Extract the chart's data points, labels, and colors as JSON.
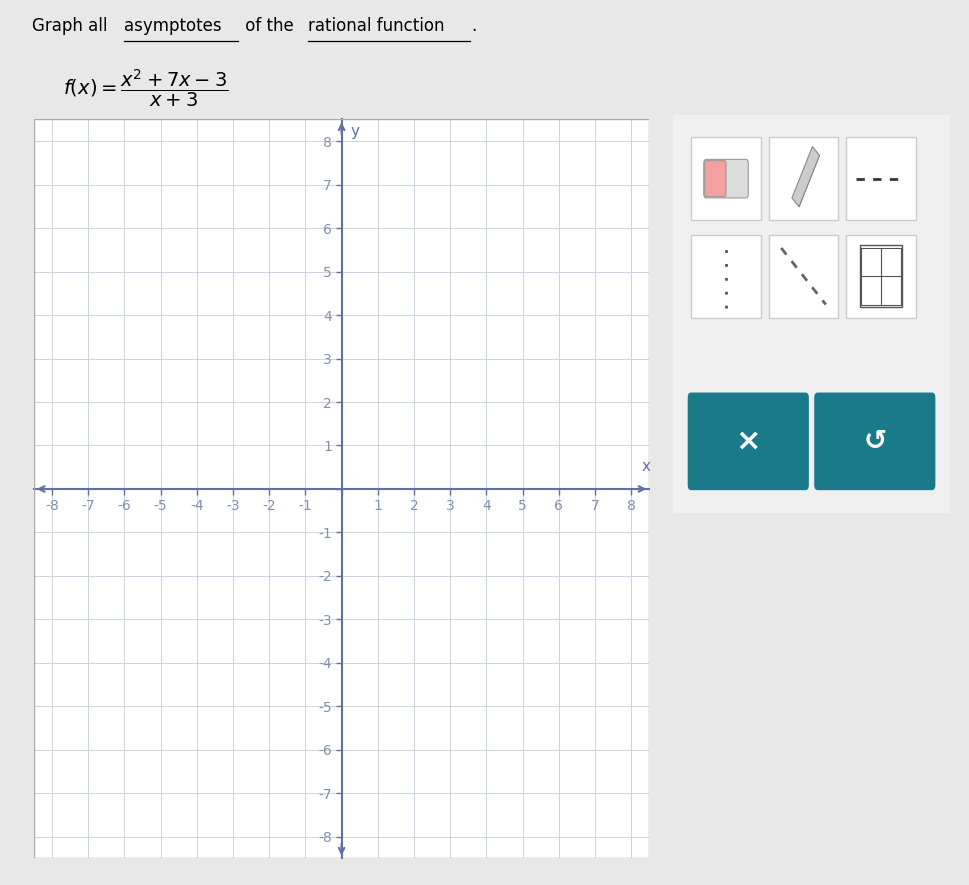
{
  "xlim": [
    -8.5,
    8.5
  ],
  "ylim": [
    -8.5,
    8.5
  ],
  "xticks": [
    -8,
    -7,
    -6,
    -5,
    -4,
    -3,
    -2,
    -1,
    0,
    1,
    2,
    3,
    4,
    5,
    6,
    7,
    8
  ],
  "yticks": [
    -8,
    -7,
    -6,
    -5,
    -4,
    -3,
    -2,
    -1,
    0,
    1,
    2,
    3,
    4,
    5,
    6,
    7,
    8
  ],
  "grid_color": "#c5cdd8",
  "grid_linewidth": 0.6,
  "axis_color": "#6070a0",
  "axis_linewidth": 1.5,
  "plot_bg_color": "#ffffff",
  "page_bg_color": "#e8e8e8",
  "tick_color": "#8090b0",
  "tick_fontsize": 8,
  "xlabel": "x",
  "ylabel": "y",
  "teal_color": "#1a7a8a",
  "figsize": [
    9.69,
    8.85
  ],
  "dpi": 100
}
